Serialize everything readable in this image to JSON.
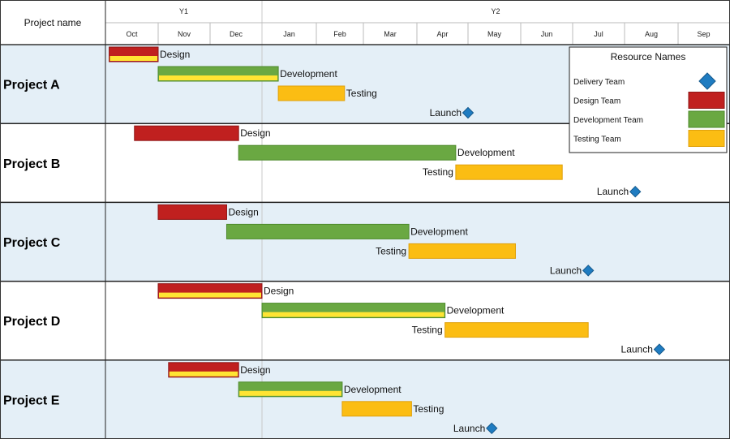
{
  "chart_data": {
    "type": "gantt",
    "header": {
      "project_column": "Project name"
    },
    "years": [
      {
        "label": "Y1",
        "start_month": 0,
        "end_month": 3
      },
      {
        "label": "Y2",
        "start_month": 3,
        "end_month": 12
      }
    ],
    "months": [
      "Oct",
      "Nov",
      "Dec",
      "Jan",
      "Feb",
      "Mar",
      "Apr",
      "May",
      "Jun",
      "Jul",
      "Aug",
      "Sep"
    ],
    "legend": {
      "title": "Resource Names",
      "items": [
        {
          "name": "Delivery Team",
          "shape": "diamond",
          "color": "#1F7CC1"
        },
        {
          "name": "Design Team",
          "shape": "bar",
          "color": "#C0201F"
        },
        {
          "name": "Development Team",
          "shape": "bar",
          "color": "#6AA842"
        },
        {
          "name": "Testing Team",
          "shape": "bar",
          "color": "#FBBD13"
        }
      ]
    },
    "projects": [
      {
        "name": "Project A",
        "tasks": [
          {
            "label": "Design",
            "team": "Design Team",
            "start": 0.07,
            "end": 1.0,
            "highlight": true,
            "label_side": "right"
          },
          {
            "label": "Development",
            "team": "Development Team",
            "start": 1.0,
            "end": 3.3,
            "highlight": true,
            "label_side": "right"
          },
          {
            "label": "Testing",
            "team": "Testing Team",
            "start": 3.3,
            "end": 4.6,
            "highlight": false,
            "label_side": "right"
          },
          {
            "label": "Launch",
            "team": "Delivery Team",
            "milestone": 7.0,
            "label_side": "left"
          }
        ]
      },
      {
        "name": "Project B",
        "tasks": [
          {
            "label": "Design",
            "team": "Design Team",
            "start": 0.55,
            "end": 2.55,
            "highlight": false,
            "label_side": "right"
          },
          {
            "label": "Development",
            "team": "Development Team",
            "start": 2.55,
            "end": 6.76,
            "highlight": false,
            "label_side": "right"
          },
          {
            "label": "Testing",
            "team": "Testing Team",
            "start": 6.76,
            "end": 8.8,
            "highlight": false,
            "label_side": "left"
          },
          {
            "label": "Launch",
            "team": "Delivery Team",
            "milestone": 10.2,
            "label_side": "left"
          }
        ]
      },
      {
        "name": "Project C",
        "tasks": [
          {
            "label": "Design",
            "team": "Design Team",
            "start": 1.0,
            "end": 2.32,
            "highlight": false,
            "label_side": "right"
          },
          {
            "label": "Development",
            "team": "Development Team",
            "start": 2.32,
            "end": 5.85,
            "highlight": false,
            "label_side": "right"
          },
          {
            "label": "Testing",
            "team": "Testing Team",
            "start": 5.85,
            "end": 7.9,
            "highlight": false,
            "label_side": "left"
          },
          {
            "label": "Launch",
            "team": "Delivery Team",
            "milestone": 9.3,
            "label_side": "left"
          }
        ]
      },
      {
        "name": "Project D",
        "tasks": [
          {
            "label": "Design",
            "team": "Design Team",
            "start": 1.0,
            "end": 3.0,
            "highlight": true,
            "label_side": "right"
          },
          {
            "label": "Development",
            "team": "Development Team",
            "start": 3.0,
            "end": 6.55,
            "highlight": true,
            "label_side": "right"
          },
          {
            "label": "Testing",
            "team": "Testing Team",
            "start": 6.55,
            "end": 9.3,
            "highlight": false,
            "label_side": "left"
          },
          {
            "label": "Launch",
            "team": "Delivery Team",
            "milestone": 10.65,
            "label_side": "left"
          }
        ]
      },
      {
        "name": "Project E",
        "tasks": [
          {
            "label": "Design",
            "team": "Design Team",
            "start": 1.2,
            "end": 2.55,
            "highlight": true,
            "label_side": "right"
          },
          {
            "label": "Development",
            "team": "Development Team",
            "start": 2.55,
            "end": 4.55,
            "highlight": true,
            "label_side": "right"
          },
          {
            "label": "Testing",
            "team": "Testing Team",
            "start": 4.55,
            "end": 5.9,
            "highlight": false,
            "label_side": "right"
          },
          {
            "label": "Launch",
            "team": "Delivery Team",
            "milestone": 7.45,
            "label_side": "left"
          }
        ]
      }
    ]
  }
}
